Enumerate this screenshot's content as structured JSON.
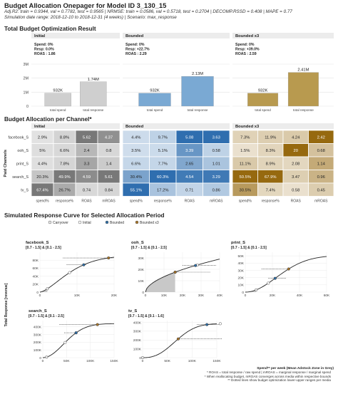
{
  "header": {
    "title": "Budget Allocation Onepager for Model ID 3_130_15",
    "subtitle1": "Adj.R2: train = 0.9344, val = 0.7782, test = 0.9565 | NRMSE: train = 0.0586, val = 0.5718, test = 0.2704 | DECOMP.RSSD = 0.408 | MAPE = 0.77",
    "subtitle2": "Simulation date range: 2018-12-10 to 2018-12-31 (4 weeks) | Scenario: max_response"
  },
  "sections": {
    "total": "Total Budget Optimization Result",
    "per_channel": "Budget Allocation per Channel*",
    "curves": "Simulated Response Curve for Selected Allocation Period"
  },
  "colors": {
    "initial": "#cfcfcf",
    "bounded": "#7aa9d3",
    "bounded_x3": "#b89a4f",
    "initial_point": "#ffffff",
    "bounded_point": "#2f6ea6",
    "bounded_x3_point": "#a8752a",
    "panel_bg": "#ececec"
  },
  "chart_data": [
    {
      "type": "bar",
      "id": "total_budget",
      "ylim": [
        0,
        3000000
      ],
      "y_ticks": [
        "0",
        "1M",
        "2M",
        "3M"
      ],
      "categories": [
        "total spend",
        "total response"
      ],
      "panels": [
        {
          "name": "Initial",
          "stats": [
            "Spend: 0%",
            "Resp: 0.0%",
            "ROAS : 1.86"
          ],
          "values": [
            932000,
            1740000
          ],
          "labels": [
            "932K",
            "1.74M"
          ]
        },
        {
          "name": "Bounded",
          "stats": [
            "Spend: 0%",
            "Resp: +22.7%",
            "ROAS : 2.29"
          ],
          "values": [
            932000,
            2130000
          ],
          "labels": [
            "932K",
            "2.13M"
          ]
        },
        {
          "name": "Bounded x3",
          "stats": [
            "Spend: 0%",
            "Resp: +39.0%",
            "ROAS : 2.59"
          ],
          "values": [
            932000,
            2410000
          ],
          "labels": [
            "932K",
            "2.41M"
          ]
        }
      ]
    },
    {
      "type": "heatmap",
      "id": "per_channel",
      "ylabel": "Paid Channels",
      "channels": [
        "facebook_S",
        "ooh_S",
        "print_S",
        "search_S",
        "tv_S"
      ],
      "columns": [
        "spend%",
        "response%",
        "ROAS",
        "mROAS"
      ],
      "panels": [
        {
          "name": "Initial",
          "cells": [
            [
              "2.9%",
              "8.8%",
              "5.62",
              "4.37"
            ],
            [
              "5%",
              "6.6%",
              "2.4",
              "0.8"
            ],
            [
              "4.4%",
              "7.8%",
              "3.3",
              "1.4"
            ],
            [
              "20.3%",
              "49.9%",
              "4.59",
              "5.61"
            ],
            [
              "67.4%",
              "26.7%",
              "0.74",
              "0.84"
            ]
          ]
        },
        {
          "name": "Bounded",
          "cells": [
            [
              "4.4%",
              "9.7%",
              "5.08",
              "3.63"
            ],
            [
              "3.5%",
              "5.1%",
              "3.39",
              "0.58"
            ],
            [
              "6.6%",
              "7.7%",
              "2.65",
              "1.01"
            ],
            [
              "30.4%",
              "60.3%",
              "4.54",
              "3.29"
            ],
            [
              "55.1%",
              "17.2%",
              "0.71",
              "0.86"
            ]
          ]
        },
        {
          "name": "Bounded x3",
          "cells": [
            [
              "7.3%",
              "11.9%",
              "4.24",
              "2.42"
            ],
            [
              "1.5%",
              "8.3%",
              "20",
              "0.68"
            ],
            [
              "11.1%",
              "8.9%",
              "2.08",
              "1.14"
            ],
            [
              "50.5%",
              "67.9%",
              "3.47",
              "0.96"
            ],
            [
              "30.5%",
              "7.4%",
              "0.58",
              "0.45"
            ]
          ]
        }
      ]
    },
    {
      "type": "line",
      "id": "response_curves",
      "ylabel": "Total Response [revenue]",
      "xlabel": "Spend** per week (Mean Adstock Zone in Grey)",
      "legend": [
        "Carryover",
        "Initial",
        "Bounded",
        "Bounded x3"
      ],
      "panels": [
        {
          "name": "facebook_S",
          "bounds": "[0.7 - 1.5] & [0.1 - 2.5]",
          "xmax": 20000,
          "x_ticks": [
            0,
            10000,
            20000
          ],
          "x_tick_labels": [
            "0",
            "10K",
            "20K"
          ],
          "ymax": 100000,
          "y_ticks": [
            0,
            20000,
            40000,
            60000,
            80000
          ],
          "y_tick_labels": [
            "0",
            "20K",
            "40K",
            "60K",
            "80K"
          ],
          "grey_to": 2000,
          "carryover": 2000,
          "initial": 8000,
          "bounded": 11800,
          "bounded_x3": 18500,
          "range_x3": [
            6200,
            19800
          ],
          "range_b": [
            7200,
            12400
          ]
        },
        {
          "name": "ooh_S",
          "bounds": "[0.7 - 1.5] & [0.1 - 2.5]",
          "xmax": 40000,
          "x_ticks": [
            0,
            10000,
            20000,
            30000,
            40000
          ],
          "x_tick_labels": [
            "0",
            "10K",
            "20K",
            "30K",
            "40K"
          ],
          "ymax": 35000,
          "y_ticks": [
            0,
            10000,
            20000,
            30000
          ],
          "y_tick_labels": [
            "0",
            "10K",
            "20K",
            "30K"
          ],
          "grey_to": 16000,
          "carryover": 16000,
          "initial": 28000,
          "bounded": 27000,
          "bounded_x3": 16000,
          "range_x3": [
            16000,
            35000
          ],
          "range_b": [
            20000,
            38000
          ]
        },
        {
          "name": "print_S",
          "bounds": "[0.7 - 1.5] & [0.1 - 2.5]",
          "xmax": 60000,
          "x_ticks": [
            0,
            20000,
            40000,
            60000
          ],
          "x_tick_labels": [
            "0",
            "20K",
            "40K",
            "60K"
          ],
          "ymax": 55000,
          "y_ticks": [
            0,
            10000,
            20000,
            30000,
            40000,
            50000
          ],
          "y_tick_labels": [
            "0",
            "10K",
            "20K",
            "30K",
            "40K",
            "50K"
          ],
          "grey_to": 8000,
          "carryover": 8000,
          "initial": 17000,
          "bounded": 22000,
          "bounded_x3": 32000,
          "range_x3": [
            12000,
            32000
          ],
          "range_b": [
            17000,
            30000
          ]
        },
        {
          "name": "search_S",
          "bounds": "[0.7 - 1.5] & [0.1 - 2.5]",
          "xmax": 150000,
          "x_ticks": [
            0,
            50000,
            100000,
            150000
          ],
          "x_tick_labels": [
            "0",
            "50K",
            "100K",
            "150K"
          ],
          "ymax": 480000,
          "y_ticks": [
            0,
            100000,
            200000,
            300000,
            400000
          ],
          "y_tick_labels": [
            "0",
            "100K",
            "200K",
            "300K",
            "400K"
          ],
          "grey_to": 8000,
          "carryover": 8000,
          "initial": 47000,
          "bounded": 70000,
          "bounded_x3": 115000,
          "range_x3": [
            35000,
            115000
          ],
          "range_b": [
            45000,
            75000
          ]
        },
        {
          "name": "tv_S",
          "bounds": "[0.7 - 1.5] & [0.1 - 1.6]",
          "xmax": 150000,
          "x_ticks": [
            0,
            50000,
            100000,
            150000
          ],
          "x_tick_labels": [
            "0",
            "50K",
            "100K",
            "150K"
          ],
          "ymax": 420000,
          "y_ticks": [
            0,
            100000,
            200000,
            300000,
            400000
          ],
          "y_tick_labels": [
            "0",
            "100K",
            "200K",
            "300K",
            "400K"
          ],
          "grey_to": 0,
          "carryover": 0,
          "initial": 157000,
          "bounded": 130000,
          "bounded_x3": 72000,
          "range_x3": [
            72000,
            160000
          ],
          "range_b": [
            110000,
            155000
          ]
        }
      ]
    }
  ],
  "footnotes": [
    "* ROAS = total response / raw spend | mROAS = marginal response / marginal spend",
    "* When reallocating budget, mROAS converges across media within respective bounds",
    "** Dotted lines show budget optimization lower-upper ranges per media"
  ]
}
